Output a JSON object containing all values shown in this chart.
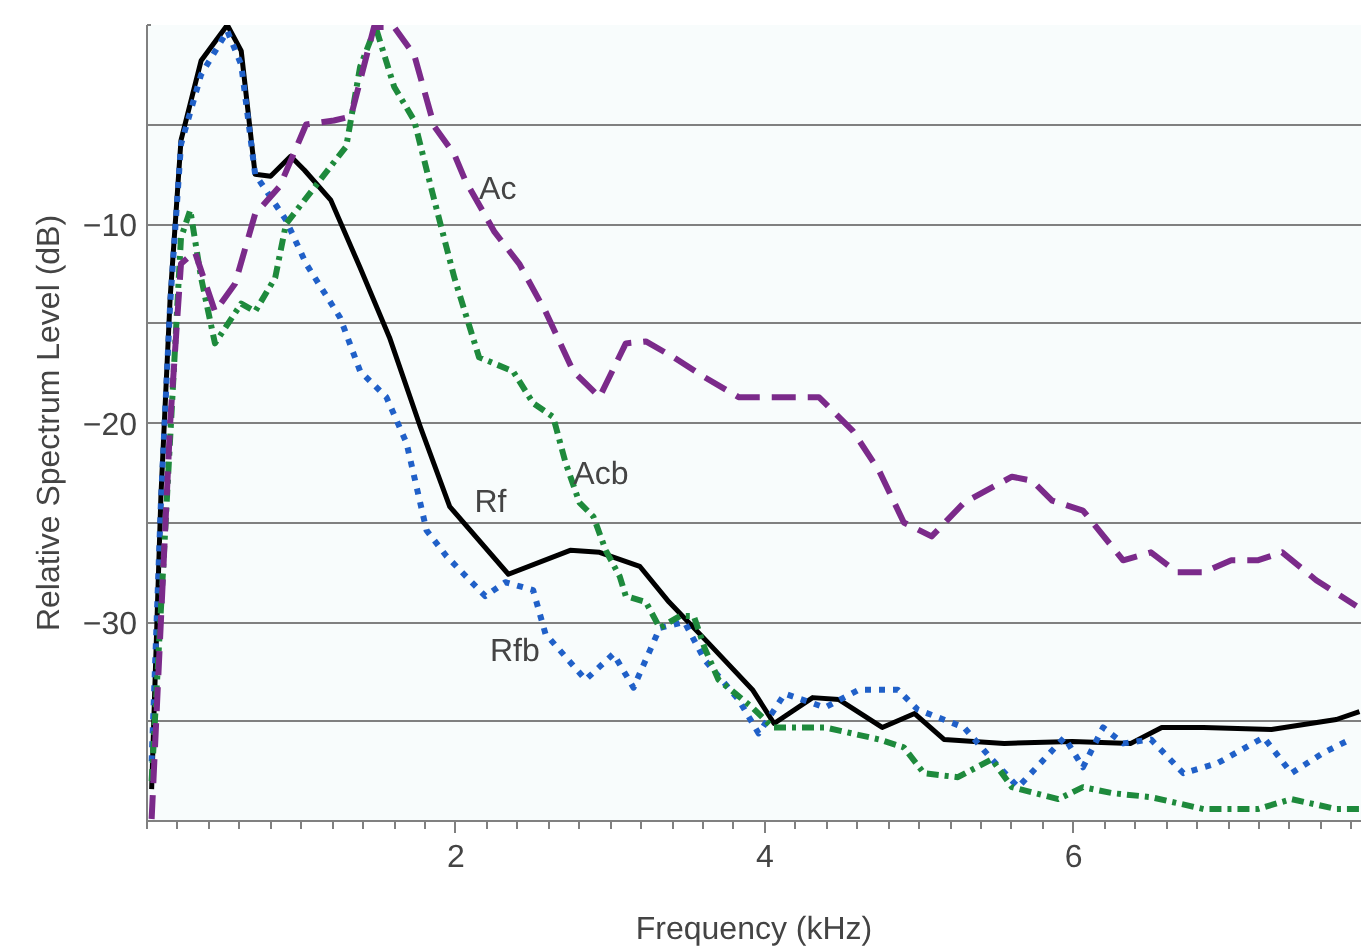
{
  "chart_data": {
    "type": "line",
    "xlabel": "Frequency (kHz)",
    "ylabel": "Relative Spectrum Level (dB)",
    "xlim": [
      0,
      7.86
    ],
    "ylim": [
      -40,
      0
    ],
    "xticks": [
      2,
      4,
      6
    ],
    "yticks": [
      {
        "value": 0,
        "label": null
      },
      {
        "value": -5,
        "label": null
      },
      -10,
      {
        "value": -15,
        "label": null
      },
      -20,
      {
        "value": -25,
        "label": null
      },
      -30,
      {
        "value": -35,
        "label": null
      }
    ],
    "grid": "y",
    "marker": "none",
    "series": [
      {
        "color": "#7b2a8a",
        "line_style": "dashed",
        "x": [
          0.03,
          0.15,
          0.22,
          0.31,
          0.44,
          0.57,
          0.7,
          0.86,
          1.03,
          1.21,
          1.32,
          1.47,
          1.6,
          1.73,
          1.86,
          1.99,
          2.06,
          2.25,
          2.41,
          2.58,
          2.76,
          2.93,
          3.1,
          3.23,
          3.41,
          3.61,
          3.83,
          4.35,
          4.57,
          4.74,
          4.9,
          5.08,
          5.29,
          5.6,
          5.73,
          5.86,
          6.06,
          6.32,
          6.5,
          6.67,
          6.84,
          7.02,
          7.19,
          7.35,
          7.57,
          7.83
        ],
        "values": [
          -39.9,
          -20,
          -12,
          -11.4,
          -14.4,
          -13,
          -9.5,
          -8.1,
          -5,
          -4.8,
          -4.6,
          -0.1,
          -0.1,
          -1.5,
          -5.1,
          -6.5,
          -7.8,
          -10.4,
          -12,
          -14.4,
          -17.4,
          -18.7,
          -16,
          -15.9,
          -16.7,
          -17.7,
          -18.7,
          -18.7,
          -20.4,
          -22.4,
          -25,
          -25.7,
          -24,
          -22.7,
          -22.9,
          -23.9,
          -24.4,
          -26.9,
          -26.5,
          -27.5,
          -27.5,
          -26.9,
          -26.9,
          -26.5,
          -27.9,
          -29.2
        ]
      },
      {
        "color": "#1e8a3c",
        "line_style": "dashdot",
        "x": [
          0.03,
          0.22,
          0.28,
          0.35,
          0.44,
          0.61,
          0.7,
          0.83,
          0.9,
          1.12,
          1.29,
          1.38,
          1.48,
          1.6,
          1.73,
          1.86,
          1.99,
          2.15,
          2.37,
          2.5,
          2.63,
          2.71,
          2.8,
          2.89,
          2.97,
          3.06,
          3.1,
          3.23,
          3.32,
          3.45,
          3.54,
          3.61,
          3.7,
          3.92,
          4.05,
          4.39,
          4.74,
          4.9,
          5.03,
          5.25,
          5.47,
          5.6,
          5.9,
          6.06,
          6.25,
          6.5,
          6.84,
          7.19,
          7.41,
          7.7,
          7.85
        ],
        "values": [
          -38,
          -10.7,
          -9.3,
          -12.7,
          -16,
          -14,
          -14.4,
          -12.7,
          -10,
          -7.8,
          -6.1,
          -2.1,
          -0.1,
          -3.1,
          -4.8,
          -8.8,
          -12.7,
          -16.7,
          -17.4,
          -19,
          -19.7,
          -22,
          -24,
          -24.7,
          -26.4,
          -27.7,
          -28.7,
          -29,
          -30.3,
          -29.7,
          -29.7,
          -31.3,
          -32.9,
          -34.3,
          -35.3,
          -35.3,
          -35.9,
          -36.3,
          -37.6,
          -37.8,
          -36.9,
          -38.3,
          -38.9,
          -38.3,
          -38.6,
          -38.8,
          -39.4,
          -39.4,
          -38.9,
          -39.4,
          -39.4
        ]
      },
      {
        "color": "#2060c8",
        "line_style": "dotted",
        "x": [
          0.03,
          0.09,
          0.15,
          0.22,
          0.35,
          0.52,
          0.61,
          0.7,
          0.9,
          1.03,
          1.25,
          1.38,
          1.55,
          1.68,
          1.81,
          1.94,
          2.19,
          2.32,
          2.5,
          2.58,
          2.84,
          3.02,
          3.15,
          3.32,
          3.48,
          3.61,
          3.83,
          3.96,
          4.13,
          4.39,
          4.61,
          4.86,
          4.99,
          5.29,
          5.47,
          5.64,
          5.94,
          6.06,
          6.19,
          6.32,
          6.5,
          6.71,
          6.93,
          7.23,
          7.41,
          7.61,
          7.79
        ],
        "values": [
          -37,
          -24,
          -14,
          -6,
          -2.5,
          -0.3,
          -2,
          -7.5,
          -9.8,
          -12,
          -14.7,
          -17.4,
          -18.7,
          -21,
          -25.4,
          -26.7,
          -28.7,
          -28,
          -28.4,
          -30.6,
          -32.9,
          -31.6,
          -33.3,
          -30.3,
          -30,
          -31.9,
          -33.9,
          -35.6,
          -33.6,
          -34.3,
          -33.4,
          -33.4,
          -34.4,
          -35.3,
          -36.9,
          -38.3,
          -35.8,
          -37.3,
          -35.3,
          -36.1,
          -35.9,
          -37.6,
          -37.1,
          -35.8,
          -37.6,
          -36.6,
          -35.9
        ]
      },
      {
        "color": "#000000",
        "line_style": "solid",
        "x": [
          0.03,
          0.09,
          0.15,
          0.22,
          0.35,
          0.52,
          0.61,
          0.7,
          0.8,
          0.93,
          1.02,
          1.19,
          1.38,
          1.57,
          1.77,
          1.96,
          2.34,
          2.74,
          2.93,
          3.19,
          3.38,
          3.64,
          3.92,
          4.06,
          4.31,
          4.48,
          4.76,
          4.97,
          5.16,
          5.55,
          5.99,
          6.37,
          6.57,
          6.84,
          7.28,
          7.7,
          7.85
        ],
        "values": [
          -38.4,
          -23.7,
          -13.7,
          -5.8,
          -1.8,
          0,
          -1.3,
          -7.5,
          -7.6,
          -6.6,
          -7.3,
          -8.8,
          -12.2,
          -15.7,
          -20.2,
          -24.2,
          -27.6,
          -26.4,
          -26.5,
          -27.2,
          -29,
          -31.1,
          -33.4,
          -35.1,
          -33.8,
          -33.9,
          -35.3,
          -34.6,
          -35.9,
          -36.1,
          -36,
          -36.1,
          -35.3,
          -35.3,
          -35.4,
          -34.9,
          -34.5
        ]
      }
    ],
    "annotations": [
      "Ac",
      "Acb",
      "Rf",
      "Rfb"
    ]
  }
}
